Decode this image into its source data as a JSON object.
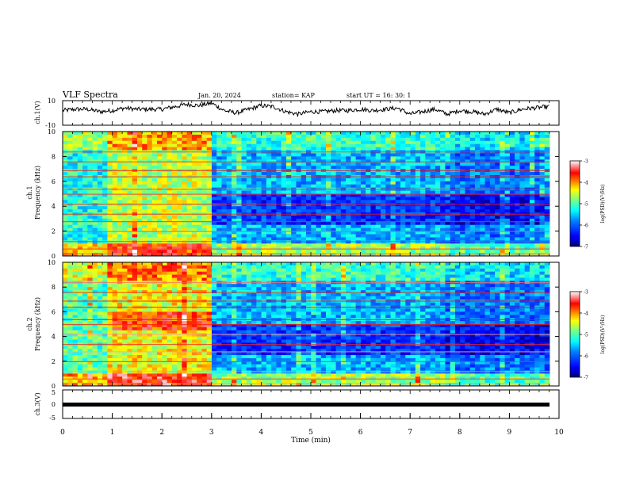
{
  "header": {
    "title": "VLF Spectra",
    "date": "Jan. 20, 2024",
    "station": "station= KAP",
    "start": "start  UT  =   16: 30: 1"
  },
  "chart_data": [
    {
      "type": "line",
      "panel": "ch1-waveform",
      "ylabel": "ch.1(V)",
      "ylim": [
        -10,
        10
      ],
      "yticks": [
        "10",
        "-10"
      ],
      "xlim": [
        0,
        10
      ],
      "x": [
        0,
        0.25,
        0.5,
        0.75,
        1,
        1.25,
        1.5,
        1.75,
        2,
        2.25,
        2.5,
        2.75,
        3,
        3.25,
        3.5,
        3.75,
        4,
        4.25,
        4.5,
        4.75,
        5,
        5.25,
        5.5,
        5.75,
        6,
        6.25,
        6.5,
        6.75,
        7,
        7.25,
        7.5,
        7.75,
        8,
        8.25,
        8.5,
        8.75,
        9,
        9.25,
        9.5,
        9.75
      ],
      "y": [
        2,
        3,
        3,
        1,
        2,
        4,
        3,
        3,
        3,
        5,
        7,
        6,
        8,
        2,
        0,
        3,
        6,
        5,
        1,
        -1,
        1,
        1,
        2,
        2,
        3,
        2,
        3,
        4,
        -1,
        1,
        3,
        -1,
        2,
        1,
        -1,
        3,
        0,
        3,
        4,
        5
      ],
      "color": "#000000"
    },
    {
      "type": "heatmap",
      "panel": "ch1-spectrogram",
      "ylabel": "ch.1\nFrequency (kHz)",
      "ylabel_line1": "ch.1",
      "ylabel_line2": "Frequency (kHz)",
      "xlim": [
        0,
        10
      ],
      "ylim": [
        0,
        10
      ],
      "yticks": [
        "0",
        "2",
        "4",
        "6",
        "8",
        "10"
      ],
      "colorbar": {
        "label": "log(PSD)(V²/Hz)",
        "range": [
          -7,
          -3
        ],
        "ticks": [
          "-3",
          "-4",
          "-5",
          "-6",
          "-7"
        ],
        "colors": [
          "#00007f",
          "#0000ff",
          "#0080ff",
          "#00ffff",
          "#80ff80",
          "#ffff00",
          "#ff8000",
          "#ff0000",
          "#ffffff"
        ]
      },
      "time_segments": [
        {
          "t0": 0,
          "t1": 0.95,
          "level": -5.2
        },
        {
          "t0": 0.95,
          "t1": 3.0,
          "level": -4.6
        },
        {
          "t0": 3.0,
          "t1": 7.7,
          "level": -5.6
        },
        {
          "t0": 7.7,
          "t1": 9.8,
          "level": -5.9
        }
      ]
    },
    {
      "type": "heatmap",
      "panel": "ch2-spectrogram",
      "ylabel_line1": "ch.2",
      "ylabel_line2": "Frequency (kHz)",
      "xlim": [
        0,
        10
      ],
      "ylim": [
        0,
        10
      ],
      "yticks": [
        "0",
        "2",
        "4",
        "6",
        "8",
        "10"
      ],
      "colorbar": {
        "label": "log(PSD)(V²/Hz)",
        "range": [
          -7,
          -3
        ],
        "ticks": [
          "-3",
          "-4",
          "-5",
          "-6",
          "-7"
        ]
      },
      "time_segments": [
        {
          "t0": 0,
          "t1": 0.95,
          "level": -5.0
        },
        {
          "t0": 0.95,
          "t1": 3.0,
          "level": -4.4
        },
        {
          "t0": 3.0,
          "t1": 7.7,
          "level": -5.6
        },
        {
          "t0": 7.7,
          "t1": 9.8,
          "level": -5.9
        }
      ]
    },
    {
      "type": "line",
      "panel": "ch3-waveform",
      "ylabel": "ch.3(V)",
      "ylim": [
        -5,
        5
      ],
      "yticks": [
        "5",
        "0",
        "-5"
      ],
      "xlim": [
        0,
        10
      ],
      "x": [
        0,
        9.8
      ],
      "y": [
        0,
        0
      ],
      "xlabel": "Time  (min)",
      "xticks": [
        "0",
        "1",
        "2",
        "3",
        "4",
        "5",
        "6",
        "7",
        "8",
        "9",
        "10"
      ]
    }
  ]
}
